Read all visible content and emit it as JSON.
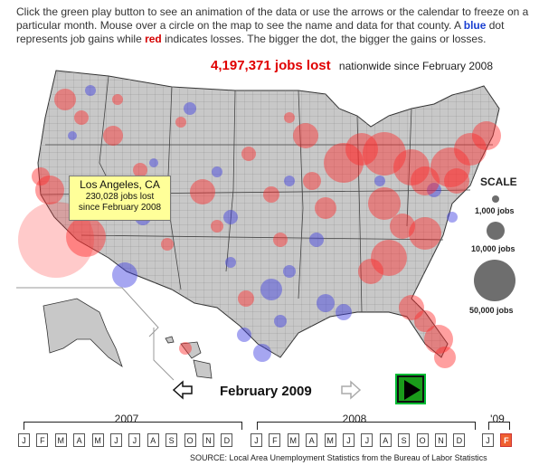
{
  "intro": {
    "part1": "Click the green play button to see an animation of the data or use the arrows or the calendar to freeze on a particular month. Mouse over a circle on the map to see the name and data for that county. A ",
    "blue_word": "blue",
    "part2": " dot represents job gains while ",
    "red_word": "red",
    "part3": " indicates losses. The bigger the dot, the bigger the gains or losses."
  },
  "headline": {
    "count": "4,197,371 jobs lost",
    "suffix": "nationwide since February 2008"
  },
  "tooltip": {
    "place": "Los Angeles, CA",
    "line1": "230,028 jobs lost",
    "line2": "since February 2008"
  },
  "scale": {
    "title": "SCALE",
    "small": "1,000 jobs",
    "medium": "10,000 jobs",
    "large": "50,000 jobs"
  },
  "nav": {
    "current_month": "February 2009",
    "prev_icon": "arrow-left-icon",
    "next_icon": "arrow-right-icon",
    "play_icon": "play-icon"
  },
  "calendar": {
    "years": [
      "2007",
      "2008",
      "'09"
    ],
    "months_2007": [
      "J",
      "F",
      "M",
      "A",
      "M",
      "J",
      "J",
      "A",
      "S",
      "O",
      "N",
      "D"
    ],
    "months_2008": [
      "J",
      "F",
      "M",
      "A",
      "M",
      "J",
      "J",
      "A",
      "S",
      "O",
      "N",
      "D"
    ],
    "months_2009": [
      "J",
      "F"
    ],
    "active": "F"
  },
  "source": "SOURCE: Local Area Unemployment Statistics from the Bureau of Labor Statistics",
  "colors": {
    "loss": "#ff2a2a",
    "gain": "#3a3ae0",
    "land": "#c8c8c8",
    "play": "#1a9a1a",
    "active_month": "#f06030"
  }
}
